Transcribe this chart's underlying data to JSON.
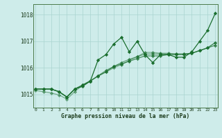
{
  "title": "Graphe pression niveau de la mer (hPa)",
  "xlabel_hours": [
    0,
    1,
    2,
    3,
    4,
    5,
    6,
    7,
    8,
    9,
    10,
    11,
    12,
    13,
    14,
    15,
    16,
    17,
    18,
    19,
    20,
    21,
    22,
    23
  ],
  "ylim": [
    1014.5,
    1018.4
  ],
  "yticks": [
    1015,
    1016,
    1017,
    1018
  ],
  "background_color": "#ceecea",
  "grid_color": "#aad4d0",
  "line_color": "#1a6e2e",
  "series": [
    [
      1015.2,
      1015.2,
      1015.2,
      1015.1,
      1014.9,
      1015.2,
      1015.3,
      1015.5,
      1016.3,
      1016.5,
      1016.9,
      1017.15,
      1016.6,
      1017.0,
      1016.5,
      1016.2,
      1016.5,
      1016.5,
      1016.4,
      1016.4,
      1016.6,
      1017.0,
      1017.4,
      1018.05
    ],
    [
      1015.2,
      1015.2,
      1015.2,
      1015.1,
      1014.9,
      1015.2,
      1015.35,
      1015.5,
      1015.7,
      1015.85,
      1016.05,
      1016.15,
      1016.25,
      1016.35,
      1016.45,
      1016.45,
      1016.45,
      1016.5,
      1016.5,
      1016.5,
      1016.55,
      1016.65,
      1016.75,
      1016.85
    ],
    [
      1015.2,
      1015.2,
      1015.2,
      1015.1,
      1014.9,
      1015.2,
      1015.35,
      1015.5,
      1015.7,
      1015.9,
      1016.05,
      1016.2,
      1016.32,
      1016.42,
      1016.52,
      1016.52,
      1016.52,
      1016.52,
      1016.52,
      1016.52,
      1016.55,
      1016.65,
      1016.75,
      1016.95
    ],
    [
      1015.15,
      1015.1,
      1015.05,
      1014.98,
      1014.82,
      1015.1,
      1015.35,
      1015.52,
      1015.68,
      1015.84,
      1016.0,
      1016.12,
      1016.28,
      1016.42,
      1016.58,
      1016.58,
      1016.55,
      1016.55,
      1016.52,
      1016.52,
      1016.55,
      1016.65,
      1016.75,
      1016.95
    ]
  ],
  "marker": "D",
  "marker_size": 2.2,
  "line_width": 0.9
}
